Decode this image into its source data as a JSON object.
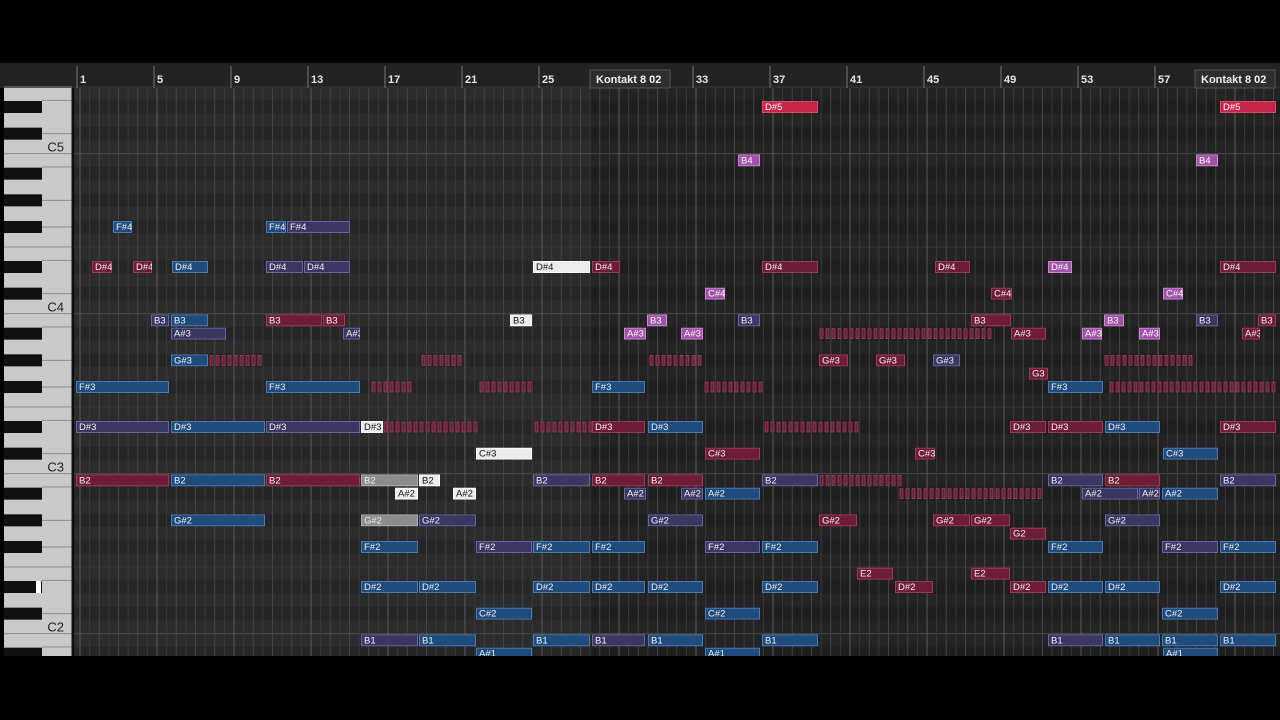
{
  "ruler": {
    "bars": [
      "1",
      "5",
      "9",
      "13",
      "17",
      "21",
      "25",
      "33",
      "37",
      "41",
      "45",
      "49",
      "53",
      "57"
    ]
  },
  "parts": [
    "Kontakt 8 02",
    "Kontakt 8 02"
  ],
  "keys": [
    "C5",
    "C4",
    "C3",
    "C2"
  ],
  "note_rows": [
    "D#5",
    "B4",
    "F#4",
    "D#4",
    "C#4",
    "B3",
    "A#3",
    "G#3",
    "G3",
    "F#3",
    "D#3",
    "C#3",
    "B2",
    "A#2",
    "G#2",
    "G2",
    "F#2",
    "E2",
    "D#2",
    "C#2",
    "B1",
    "A#1"
  ]
}
